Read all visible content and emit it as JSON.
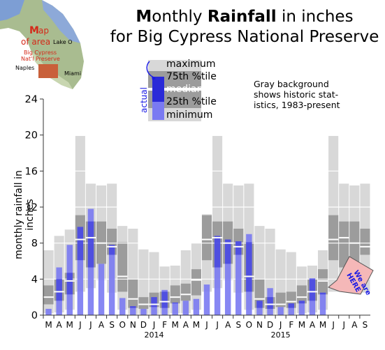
{
  "title": {
    "line1_pre": "M",
    "line1_a": "onthly ",
    "line1_bold": "Rainfall",
    "line1_b": " in inches",
    "line2": "for Big Cypress National Preserve"
  },
  "map": {
    "title_m": "M",
    "title_rest": "ap",
    "title_line2": "of area",
    "lake": "Lake O",
    "preserve_line1": "Big Cypress",
    "preserve_line2": "Nat'l Preserve",
    "city_naples": "Naples",
    "city_miami": "Miami"
  },
  "legend": {
    "actual_label": "actual",
    "items": [
      "maximum",
      "75th %tile",
      "median",
      "25th %tile",
      "minimum"
    ],
    "note": [
      "Gray background",
      "shows historic stat-",
      "istics, 1983-present"
    ]
  },
  "callout": {
    "line1": "We are",
    "line2": "HERE"
  },
  "chart_data": {
    "type": "bar",
    "ylabel": "monthly rainfall in inches",
    "ylim": [
      0,
      24
    ],
    "yticks": [
      0,
      4,
      8,
      12,
      16,
      20,
      24
    ],
    "grid": true,
    "categories": [
      "M",
      "A",
      "M",
      "J",
      "J",
      "A",
      "S",
      "O",
      "N",
      "D",
      "J",
      "F",
      "M",
      "A",
      "M",
      "J",
      "J",
      "A",
      "S",
      "O",
      "N",
      "D",
      "J",
      "F",
      "M",
      "A",
      "M",
      "J",
      "J",
      "A",
      "S"
    ],
    "year_labels": [
      {
        "label": "2014",
        "month_index": 10
      },
      {
        "label": "2015",
        "month_index": 22
      }
    ],
    "series": [
      {
        "name": "actual",
        "values": [
          0.7,
          5.3,
          7.8,
          9.8,
          11.8,
          5.7,
          7.8,
          1.9,
          1.0,
          0.7,
          2.0,
          2.8,
          1.4,
          1.6,
          1.8,
          3.4,
          8.8,
          8.4,
          8.2,
          9.0,
          1.6,
          3.0,
          0.9,
          1.3,
          1.6,
          4.1,
          2.5,
          null,
          null,
          null,
          null
        ]
      },
      {
        "name": "maximum",
        "values": [
          7.2,
          8.8,
          9.5,
          19.9,
          14.6,
          14.4,
          14.6,
          9.9,
          9.6,
          7.3,
          7.0,
          5.4,
          5.5,
          7.2,
          8.0,
          11.2,
          19.9,
          14.6,
          14.4,
          14.6,
          9.9,
          9.6,
          7.3,
          7.0,
          5.4,
          5.5,
          7.2,
          19.9,
          14.6,
          14.4,
          14.6
        ]
      },
      {
        "name": "75th %tile",
        "values": [
          3.3,
          4.0,
          4.7,
          11.1,
          10.4,
          10.4,
          9.6,
          8.1,
          4.0,
          2.0,
          2.5,
          2.6,
          3.3,
          3.5,
          5.1,
          11.1,
          10.4,
          10.4,
          9.6,
          8.1,
          4.0,
          2.0,
          2.5,
          2.6,
          3.3,
          4.0,
          5.1,
          11.1,
          10.4,
          10.4,
          9.6
        ]
      },
      {
        "name": "median",
        "values": [
          2.0,
          2.6,
          3.8,
          8.4,
          8.6,
          8.0,
          7.6,
          4.3,
          1.8,
          1.2,
          1.2,
          1.5,
          2.0,
          2.3,
          3.9,
          8.4,
          8.6,
          8.0,
          7.6,
          4.3,
          1.8,
          1.2,
          1.2,
          1.5,
          2.0,
          2.6,
          3.8,
          8.4,
          8.6,
          8.0,
          7.6
        ]
      },
      {
        "name": "25th %tile",
        "values": [
          1.2,
          1.6,
          2.3,
          6.1,
          5.3,
          5.7,
          6.7,
          2.6,
          0.8,
          0.7,
          0.9,
          0.8,
          1.3,
          1.6,
          2.2,
          6.1,
          5.3,
          5.7,
          6.7,
          2.6,
          0.8,
          0.7,
          0.9,
          0.8,
          1.3,
          1.6,
          2.3,
          6.1,
          5.3,
          5.7,
          6.7
        ]
      },
      {
        "name": "minimum",
        "values": [
          0.2,
          0.3,
          0.6,
          2.6,
          3.0,
          3.9,
          2.5,
          0.6,
          0.1,
          0.1,
          0.1,
          0.1,
          0.2,
          0.2,
          0.6,
          2.6,
          3.0,
          3.9,
          2.5,
          0.6,
          0.1,
          0.1,
          0.1,
          0.1,
          0.2,
          0.3,
          0.6,
          2.6,
          3.0,
          3.9,
          2.5
        ]
      }
    ],
    "colors": {
      "range": "#d8d8d8",
      "iqr": "#9c9c9c",
      "median": "#ffffff",
      "actual_dark": "#2a2ad8",
      "actual_light": "#7a7af2",
      "grid": "#ffffff",
      "callout": "#f5b8b8",
      "callout_text": "#1a1ae6"
    }
  }
}
